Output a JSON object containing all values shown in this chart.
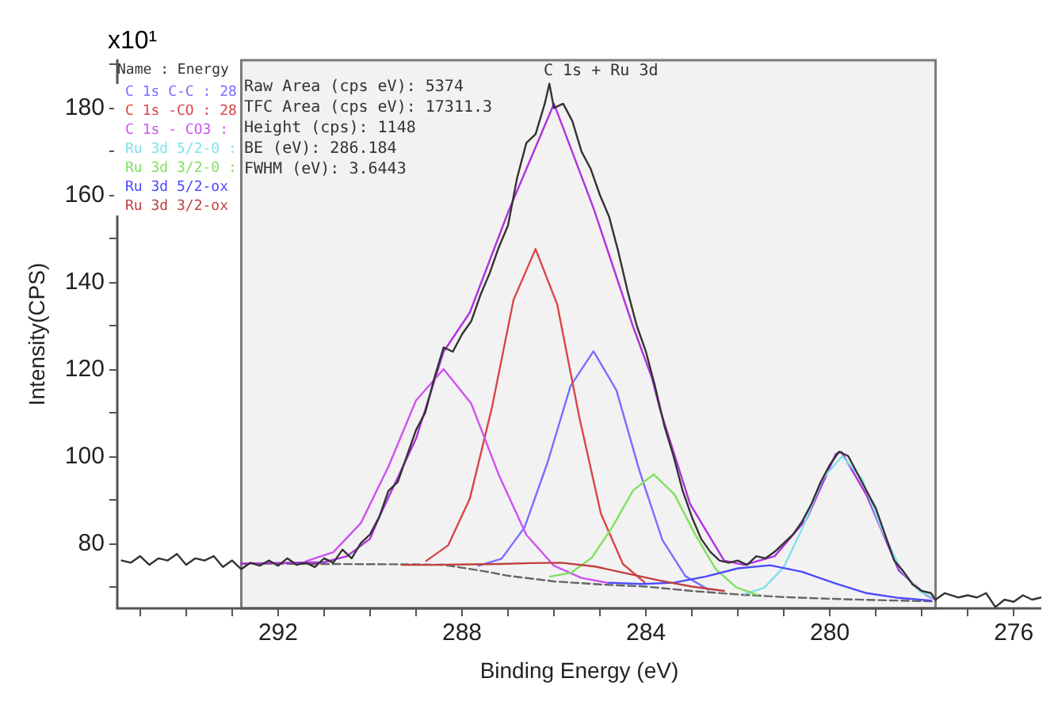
{
  "chart_data": {
    "type": "line",
    "title": "C 1s + Ru 3d",
    "xlabel": "Binding Energy (eV)",
    "ylabel": "Intensity(CPS)",
    "legend_title": "Name : Energy",
    "legend": "top left",
    "grid": false,
    "marker": "none",
    "line_style": "solid",
    "annotations": [
      "x10¹",
      "Raw Area (cps eV): 5374",
      "TFC Area (cps eV): 17311.3",
      "Height (cps): 1148",
      "BE (eV): 286.184",
      "FWHM (eV): 3.6443"
    ],
    "xlim": [
      295.5,
      275.4
    ],
    "ylim": [
      65,
      191
    ],
    "xticks": [
      {
        "value": 295,
        "label": null
      },
      {
        "value": 294,
        "label": null
      },
      {
        "value": 293,
        "label": null
      },
      292,
      {
        "value": 291,
        "label": null
      },
      {
        "value": 290,
        "label": null
      },
      {
        "value": 289,
        "label": null
      },
      288,
      {
        "value": 287,
        "label": null
      },
      {
        "value": 286,
        "label": null
      },
      {
        "value": 285,
        "label": null
      },
      284,
      {
        "value": 283,
        "label": null
      },
      {
        "value": 282,
        "label": null
      },
      {
        "value": 281,
        "label": null
      },
      280,
      {
        "value": 279,
        "label": null
      },
      {
        "value": 278,
        "label": null
      },
      {
        "value": 277,
        "label": null
      },
      276
    ],
    "yticks": [
      {
        "value": 70,
        "label": null
      },
      80,
      {
        "value": 90,
        "label": null
      },
      100,
      {
        "value": 110,
        "label": null
      },
      120,
      {
        "value": 130,
        "label": null
      },
      140,
      {
        "value": 150,
        "label": null
      },
      160,
      {
        "value": 170,
        "label": null
      },
      180,
      {
        "value": 190,
        "label": null
      }
    ],
    "bands": [
      {
        "axis": "x",
        "from": 292.8,
        "to": 277.7,
        "color": "#f2f2f2"
      }
    ],
    "series": [
      {
        "color": "#666666",
        "line_style": "dashed",
        "x": [
          292.8,
          289,
          288.4,
          287.5,
          287,
          286,
          285,
          284,
          283,
          282,
          281,
          280,
          279,
          277.7
        ],
        "values": [
          75.3,
          75.1,
          75,
          73.5,
          72.5,
          71.2,
          70.5,
          70,
          69,
          68.2,
          67.6,
          67.2,
          66.9,
          66.6
        ]
      },
      {
        "color": "#b030e0",
        "x": [
          292.8,
          291,
          290.5,
          290,
          289.8,
          289,
          288.4,
          287.83,
          287,
          286,
          285.14,
          284.27,
          283.87,
          283.7,
          283.04,
          282.3,
          281.86,
          281.2,
          280.5,
          279.87,
          279.75,
          279.2,
          278.5,
          277.9,
          277.7
        ],
        "values": [
          75.3,
          75.6,
          77,
          81,
          86,
          104,
          124,
          133,
          156,
          181,
          157,
          129.5,
          118,
          111,
          89,
          76,
          75,
          77,
          85.6,
          100.5,
          101,
          91,
          73.7,
          68,
          67
        ]
      },
      {
        "name": "C 1s C-C : 28",
        "color": "#7a6cff",
        "x": [
          287.64,
          287.14,
          286.64,
          286.14,
          285.64,
          285.14,
          284.64,
          284.14,
          283.64,
          283.14,
          282.64
        ],
        "values": [
          74.8,
          76.4,
          83.6,
          98.5,
          116.1,
          124.1,
          115.1,
          96.6,
          80.7,
          72.4,
          69.3
        ]
      },
      {
        "name": "C 1s -CO : 28",
        "color": "#d94545",
        "x": [
          288.78,
          288.3,
          287.83,
          287.35,
          286.88,
          286.4,
          285.93,
          285.45,
          284.98,
          284.5,
          284.03
        ],
        "values": [
          75.9,
          79.5,
          90.2,
          111.1,
          135.9,
          147.6,
          134.9,
          109,
          86.8,
          75.2,
          71
        ]
      },
      {
        "name": "C 1s - CO3 :",
        "color": "#d050f0",
        "x": [
          291.4,
          290.8,
          290.2,
          289.6,
          289,
          288.4,
          287.8,
          287.2,
          286.6,
          286,
          285.4,
          284.8
        ],
        "values": [
          75.8,
          77.9,
          84.6,
          97.6,
          112.8,
          120,
          112.1,
          95.7,
          81.9,
          74.8,
          72,
          70.8
        ]
      },
      {
        "name": "Ru 3d 5/2-0 :",
        "color": "#80e0f0",
        "x": [
          281.86,
          281.43,
          281,
          280.58,
          280.15,
          279.73,
          279.3,
          278.88,
          278.45,
          278.03,
          277.7
        ],
        "values": [
          68.3,
          69.7,
          74.5,
          83.8,
          94.9,
          100,
          94.7,
          83.4,
          73.8,
          68.8,
          67.2
        ]
      },
      {
        "name": "Ru 3d 3/2-0 :",
        "color": "#80e060",
        "x": [
          286.08,
          285.63,
          285.18,
          284.73,
          284.28,
          283.83,
          283.38,
          282.93,
          282.48,
          282.03,
          281.58
        ],
        "values": [
          72.3,
          73.2,
          76.6,
          83.7,
          92.1,
          95.8,
          91.2,
          82,
          74,
          69.8,
          68.1
        ]
      },
      {
        "name": "Ru 3d 5/2-ox",
        "color": "#4a4aff",
        "x": [
          284.8,
          284.1,
          283.4,
          282.7,
          282,
          281.3,
          280.6,
          279.9,
          279.2,
          278.5,
          277.8
        ],
        "values": [
          70.9,
          70.6,
          70.9,
          72.3,
          74.2,
          74.9,
          73.4,
          70.8,
          68.5,
          67.4,
          66.8
        ]
      },
      {
        "name": "Ru 3d 3/2-ox",
        "color": "#c04040",
        "x": [
          289.3,
          288.6,
          287.9,
          287.2,
          286.5,
          285.84,
          285.1,
          284.4,
          283.7,
          283,
          282.3
        ],
        "values": [
          75,
          75,
          75.1,
          75.2,
          75.4,
          75.5,
          74.6,
          73,
          71.4,
          70,
          69
        ]
      },
      {
        "color": "#333333",
        "x": [
          295.4,
          295.2,
          295,
          294.8,
          294.6,
          294.4,
          294.2,
          294,
          293.8,
          293.6,
          293.4,
          293.2,
          293,
          292.8,
          292.6,
          292.4,
          292.2,
          292,
          291.8,
          291.6,
          291.4,
          291.2,
          291,
          290.8,
          290.6,
          290.4,
          290.2,
          290,
          289.8,
          289.6,
          289.4,
          289.2,
          289,
          288.8,
          288.6,
          288.4,
          288.2,
          288,
          287.8,
          287.6,
          287.4,
          287.2,
          287,
          286.8,
          286.6,
          286.4,
          286.2,
          286.1,
          286,
          285.8,
          285.6,
          285.4,
          285.2,
          285,
          284.8,
          284.6,
          284.4,
          284.2,
          284,
          283.8,
          283.6,
          283.4,
          283.2,
          283,
          282.8,
          282.6,
          282.4,
          282.2,
          282,
          281.8,
          281.6,
          281.4,
          281.2,
          281,
          280.8,
          280.6,
          280.4,
          280.2,
          280,
          279.8,
          279.6,
          279.4,
          279.2,
          279,
          278.8,
          278.6,
          278.4,
          278.2,
          278,
          277.8,
          277.7,
          277.5,
          277.2,
          277,
          276.8,
          276.6,
          276.4,
          276.2,
          276,
          275.8,
          275.6,
          275.4
        ],
        "values": [
          76,
          75.5,
          77,
          75,
          76.5,
          76,
          77.5,
          75,
          76.5,
          76,
          77,
          74.5,
          76,
          74,
          75.5,
          74.8,
          76,
          74.8,
          76.5,
          75,
          75.5,
          74.5,
          76.5,
          75.5,
          78.5,
          76.5,
          80,
          82,
          86,
          92,
          94,
          100,
          106,
          110,
          118,
          125,
          124,
          128,
          131,
          137,
          142,
          148,
          153,
          164,
          172,
          174,
          181,
          185.6,
          180,
          181,
          177,
          170,
          166,
          160,
          155,
          147,
          138,
          130,
          124,
          116,
          107,
          100,
          92,
          86,
          81,
          78,
          76,
          75.5,
          76,
          75,
          77,
          76.5,
          78,
          80,
          82,
          85,
          89,
          94,
          98,
          101,
          100,
          96,
          92,
          88,
          82,
          76,
          73.5,
          70.5,
          69,
          68.5,
          67,
          68.5,
          67.5,
          68,
          67.5,
          68.5,
          65.3,
          67,
          66.5,
          68,
          67,
          67.5
        ]
      }
    ]
  }
}
